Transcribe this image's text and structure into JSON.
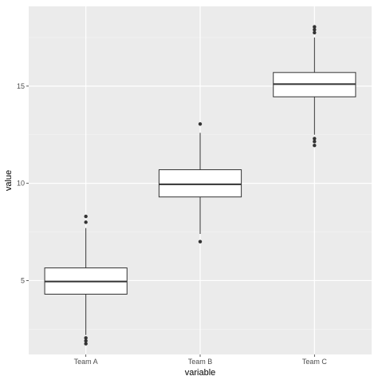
{
  "chart_data": {
    "type": "boxplot",
    "xlabel": "variable",
    "ylabel": "value",
    "ylim": [
      1.2,
      19.1
    ],
    "y_ticks": [
      5,
      10,
      15
    ],
    "grid": true,
    "categories": [
      "Team A",
      "Team B",
      "Team C"
    ],
    "boxes": [
      {
        "category": "Team A",
        "whisker_low": 2.2,
        "q1": 4.3,
        "median": 4.95,
        "q3": 5.65,
        "whisker_high": 7.7,
        "outliers": [
          8.3,
          8.0,
          2.05,
          1.9,
          1.75
        ]
      },
      {
        "category": "Team B",
        "whisker_low": 7.4,
        "q1": 9.3,
        "median": 9.95,
        "q3": 10.7,
        "whisker_high": 12.6,
        "outliers": [
          13.05,
          7.0
        ]
      },
      {
        "category": "Team C",
        "whisker_low": 12.5,
        "q1": 14.45,
        "median": 15.1,
        "q3": 15.7,
        "whisker_high": 17.5,
        "outliers": [
          18.05,
          17.9,
          17.75,
          12.3,
          12.15,
          11.95
        ]
      }
    ],
    "colors": {
      "panel": "#ebebeb",
      "grid_major": "#ffffff",
      "grid_minor": "#f5f5f5",
      "box_fill": "#ffffff",
      "box_line": "#333333",
      "tick_text": "#4d4d4d",
      "point": "#333333"
    }
  }
}
